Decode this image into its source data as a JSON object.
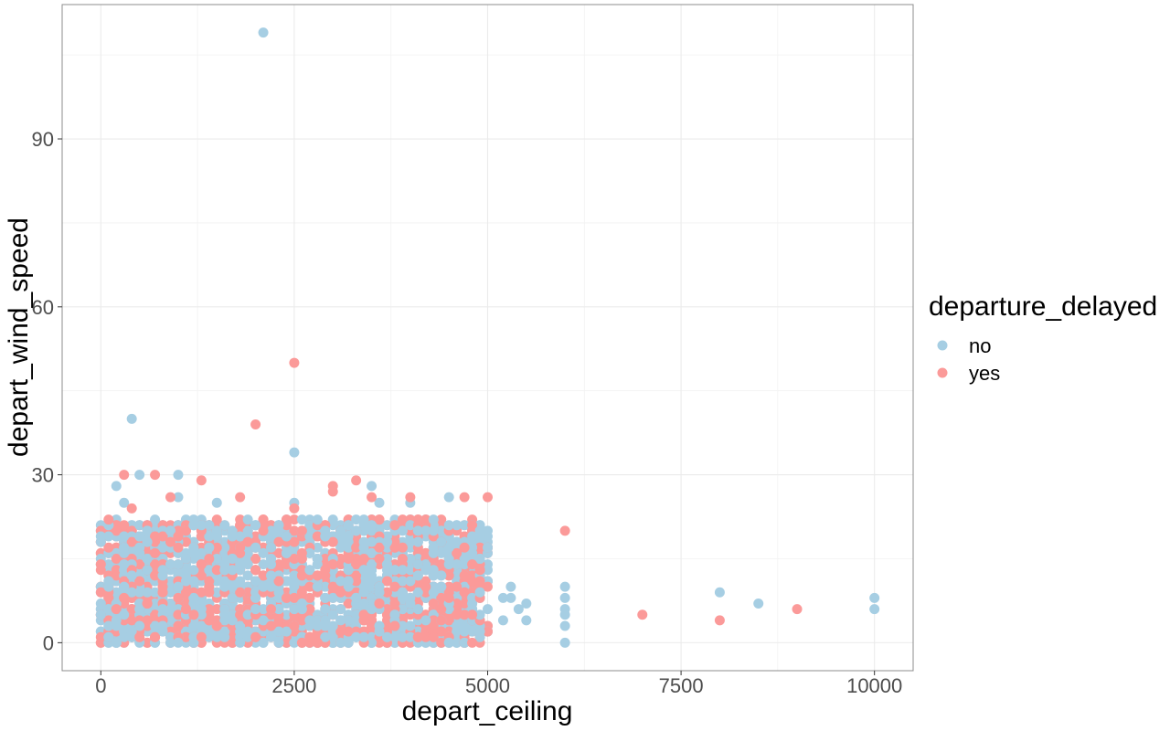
{
  "chart_data": {
    "type": "scatter",
    "title": "",
    "xlabel": "depart_ceiling",
    "ylabel": "depart_wind_speed",
    "xlim": [
      -500,
      10500
    ],
    "ylim": [
      -5,
      114
    ],
    "x_ticks": [
      0,
      2500,
      5000,
      7500,
      10000
    ],
    "x_tick_labels": [
      "0",
      "2500",
      "5000",
      "7500",
      "10000"
    ],
    "y_ticks": [
      0,
      30,
      60,
      90
    ],
    "y_tick_labels": [
      "0",
      "30",
      "60",
      "90"
    ],
    "grid": true,
    "legend": {
      "title": "departure_delayed",
      "placement": "right",
      "entries": [
        {
          "label": "no",
          "color": "#a6cee3"
        },
        {
          "label": "yes",
          "color": "#fb9a99"
        }
      ]
    },
    "series": [
      {
        "name": "no",
        "color": "#a6cee3",
        "points": [
          [
            2100,
            109
          ],
          [
            400,
            40
          ],
          [
            2500,
            34
          ],
          [
            500,
            30
          ],
          [
            1000,
            30
          ],
          [
            200,
            28
          ],
          [
            3500,
            28
          ],
          [
            1000,
            26
          ],
          [
            4500,
            26
          ],
          [
            1500,
            25
          ],
          [
            2500,
            25
          ],
          [
            3600,
            25
          ],
          [
            4000,
            25
          ],
          [
            300,
            25
          ],
          [
            4200,
            20
          ],
          [
            4300,
            20
          ],
          [
            5200,
            8
          ],
          [
            5300,
            10
          ],
          [
            5300,
            8
          ],
          [
            5500,
            7
          ],
          [
            5500,
            4
          ],
          [
            5200,
            4
          ],
          [
            5400,
            6
          ],
          [
            6000,
            10
          ],
          [
            6000,
            8
          ],
          [
            6000,
            6
          ],
          [
            6000,
            5
          ],
          [
            6000,
            3
          ],
          [
            6000,
            0
          ],
          [
            8000,
            9
          ],
          [
            8500,
            7
          ],
          [
            10000,
            8
          ],
          [
            10000,
            6
          ]
        ]
      },
      {
        "name": "yes",
        "color": "#fb9a99",
        "points": [
          [
            2500,
            50
          ],
          [
            2000,
            39
          ],
          [
            300,
            30
          ],
          [
            700,
            30
          ],
          [
            1300,
            29
          ],
          [
            3300,
            29
          ],
          [
            3000,
            28
          ],
          [
            3000,
            27
          ],
          [
            4000,
            26
          ],
          [
            4700,
            26
          ],
          [
            5000,
            26
          ],
          [
            1800,
            26
          ],
          [
            900,
            26
          ],
          [
            3500,
            26
          ],
          [
            2500,
            24
          ],
          [
            100,
            22
          ],
          [
            400,
            24
          ],
          [
            6000,
            20
          ],
          [
            7000,
            5
          ],
          [
            8000,
            4
          ],
          [
            9000,
            6
          ]
        ]
      }
    ],
    "dense_cloud": {
      "x_range": [
        0,
        5000
      ],
      "y_range": [
        0,
        22
      ],
      "note_series": [
        "no",
        "yes"
      ]
    }
  }
}
